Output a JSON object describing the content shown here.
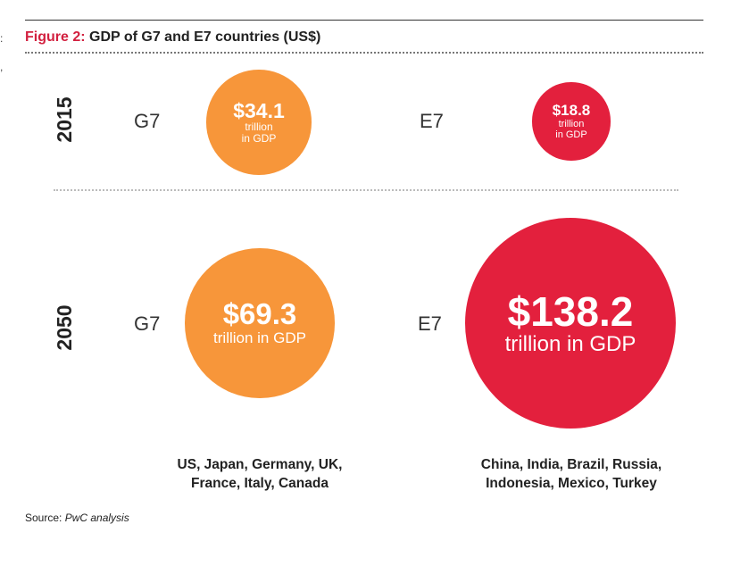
{
  "figure": {
    "label": "Figure 2:",
    "title": "GDP of G7 and E7 countries (US$)",
    "source_prefix": "Source: ",
    "source_name": "PwC analysis"
  },
  "colors": {
    "g7": "#f7963a",
    "e7": "#e3203d",
    "figure_label": "#d2203f"
  },
  "chart_data": {
    "type": "bubble",
    "title": "GDP of G7 and E7 countries (US$)",
    "unit": "trillion US$",
    "rows": [
      {
        "year": "2015",
        "groups": [
          {
            "name": "G7",
            "value": 34.1,
            "value_label": "$34.1",
            "unit_label_line1": "trillion",
            "unit_label_line2": "in GDP"
          },
          {
            "name": "E7",
            "value": 18.8,
            "value_label": "$18.8",
            "unit_label_line1": "trillion",
            "unit_label_line2": "in GDP"
          }
        ]
      },
      {
        "year": "2050",
        "groups": [
          {
            "name": "G7",
            "value": 69.3,
            "value_label": "$69.3",
            "unit_label_line1": "trillion in GDP",
            "unit_label_line2": ""
          },
          {
            "name": "E7",
            "value": 138.2,
            "value_label": "$138.2",
            "unit_label_line1": "trillion in GDP",
            "unit_label_line2": ""
          }
        ]
      }
    ],
    "members": {
      "G7": [
        "US, Japan, Germany, UK,",
        "France, Italy, Canada"
      ],
      "E7": [
        "China, India, Brazil, Russia,",
        "Indonesia, Mexico, Turkey"
      ]
    }
  }
}
